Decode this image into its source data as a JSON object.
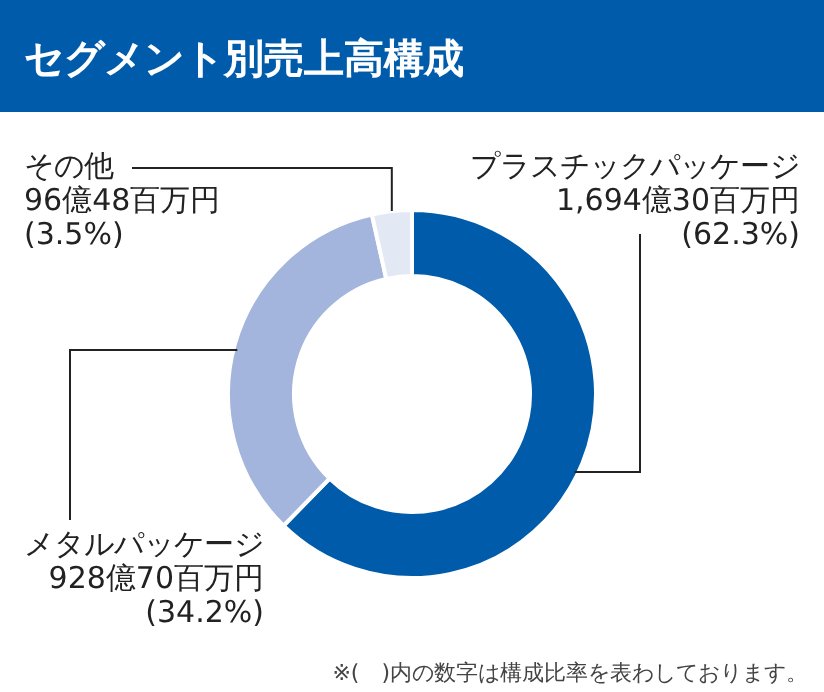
{
  "chart_data": {
    "type": "donut",
    "title": "セグメント別売上高構成",
    "categories": [
      "プラスチックパッケージ",
      "メタルパッケージ",
      "その他"
    ],
    "values": [
      62.3,
      34.2,
      3.5
    ],
    "colors": [
      "#005bab",
      "#a3b5dc",
      "#e3e8f5"
    ],
    "value_labels": [
      "1,694億30百万円\n(62.3%)",
      "928億70百万円\n(34.2%)",
      "96億48百万円\n(3.5%)"
    ],
    "annotations": [
      "※(　)内の数字は構成比率を表わしております。"
    ]
  }
}
